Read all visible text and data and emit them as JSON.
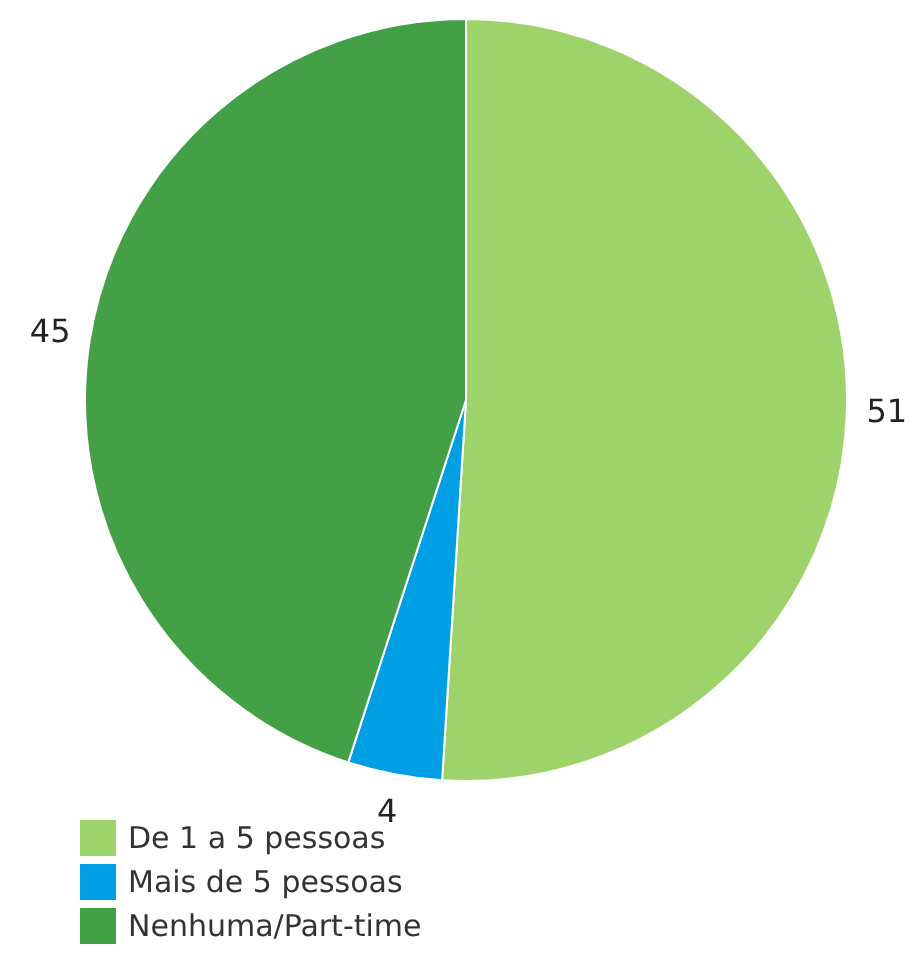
{
  "chart_data": {
    "type": "pie",
    "categories": [
      "De 1 a 5 pessoas",
      "Mais de 5 pessoas",
      "Nenhuma/Part-time"
    ],
    "values": [
      51,
      4,
      45
    ],
    "colors": [
      "#9dd36a",
      "#009fe3",
      "#43a047"
    ],
    "data_labels": true,
    "legend": "bottom left"
  }
}
